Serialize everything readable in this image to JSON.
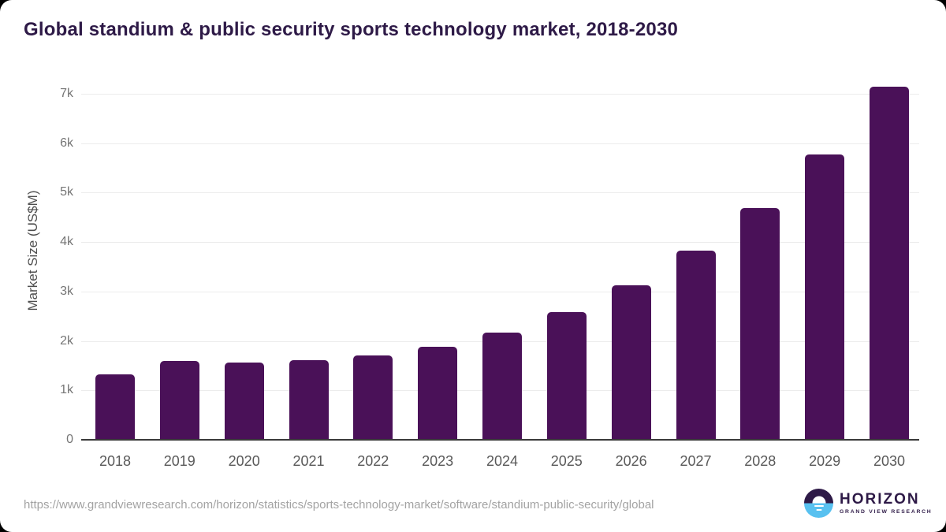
{
  "header": {
    "title": "Global standium & public security sports technology market, 2018-2030"
  },
  "chart_data": {
    "type": "bar",
    "title": "Global standium & public security sports technology market, 2018-2030",
    "categories": [
      "2018",
      "2019",
      "2020",
      "2021",
      "2022",
      "2023",
      "2024",
      "2025",
      "2026",
      "2027",
      "2028",
      "2029",
      "2030"
    ],
    "values": [
      1320,
      1590,
      1570,
      1610,
      1710,
      1880,
      2170,
      2590,
      3130,
      3830,
      4690,
      5780,
      7140
    ],
    "xlabel": "",
    "ylabel": "Market Size (US$M)",
    "ylim": [
      0,
      7000
    ],
    "ytick_step": 1000,
    "ytick_labels": [
      "0",
      "1k",
      "2k",
      "3k",
      "4k",
      "5k",
      "6k",
      "7k"
    ],
    "grid": "horizontal-only",
    "legend": "none",
    "bar_color": "#4a1158"
  },
  "footer": {
    "source_url": "https://www.grandviewresearch.com/horizon/statistics/sports-technology-market/software/standium-public-security/global",
    "logo": {
      "name": "HORIZON",
      "subtitle": "GRAND VIEW RESEARCH"
    }
  },
  "colors": {
    "bar": "#4a1158",
    "title_text": "#2e1a47",
    "axis_text": "#595959",
    "tick_text": "#757575",
    "gridline": "#ececec",
    "baseline": "#3a3a3a",
    "url_text": "#a3a3a3",
    "logo_purple": "#2e1a47",
    "logo_blue": "#58c1f0",
    "card_background": "#ffffff",
    "page_background": "#000000"
  }
}
